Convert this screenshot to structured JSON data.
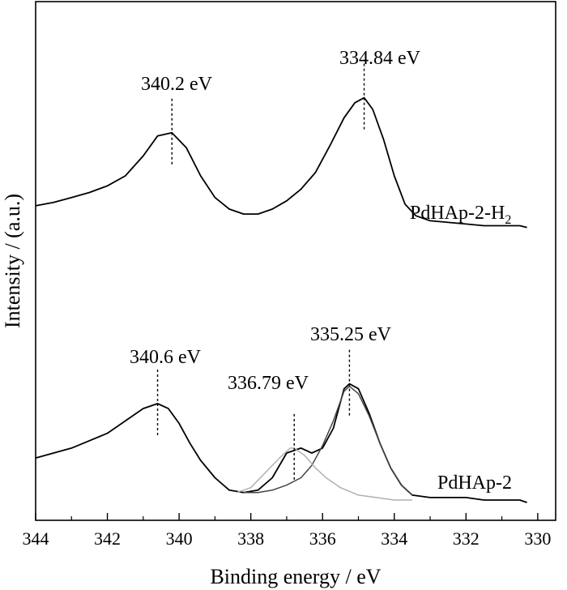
{
  "chart_data": {
    "type": "line",
    "title": "",
    "xlabel": "Binding energy / eV",
    "ylabel": "Intensity / (a.u.)",
    "xlim": [
      344,
      329.5
    ],
    "x_reversed": true,
    "xticks": [
      344,
      342,
      340,
      338,
      336,
      334,
      332,
      330
    ],
    "xtick_labels": [
      "344",
      "342",
      "340",
      "338",
      "336",
      "334",
      "332",
      "330"
    ],
    "grid": false,
    "legend": "none",
    "series": [
      {
        "name": "PdHAp-2-H₂",
        "label_main": "PdHAp-2-H",
        "label_sub": "2",
        "color": "#000000",
        "x": [
          344,
          343.5,
          343,
          342.5,
          342,
          341.5,
          341,
          340.6,
          340.2,
          339.8,
          339.4,
          339,
          338.6,
          338.2,
          337.8,
          337.4,
          337,
          336.6,
          336.2,
          335.8,
          335.4,
          335.1,
          334.84,
          334.6,
          334.3,
          334,
          333.7,
          333.4,
          333,
          332.5,
          332,
          331.5,
          331,
          330.5,
          330.3
        ],
        "y": [
          0.42,
          0.44,
          0.47,
          0.5,
          0.54,
          0.6,
          0.72,
          0.84,
          0.86,
          0.77,
          0.6,
          0.47,
          0.4,
          0.37,
          0.37,
          0.4,
          0.45,
          0.52,
          0.62,
          0.78,
          0.95,
          1.04,
          1.07,
          1.0,
          0.82,
          0.6,
          0.43,
          0.36,
          0.33,
          0.32,
          0.31,
          0.3,
          0.3,
          0.3,
          0.29
        ]
      },
      {
        "name": "PdHAp-2",
        "label_main": "PdHAp-2",
        "label_sub": "",
        "color": "#000000",
        "x": [
          344,
          343.5,
          343,
          342.5,
          342,
          341.5,
          341,
          340.6,
          340.3,
          340,
          339.7,
          339.4,
          339,
          338.6,
          338.2,
          337.8,
          337.4,
          337,
          336.6,
          336.3,
          336,
          335.7,
          335.4,
          335.25,
          335.0,
          334.7,
          334.4,
          334.1,
          333.8,
          333.5,
          333,
          332.5,
          332,
          331.5,
          331,
          330.5,
          330.3
        ],
        "y": [
          0.18,
          0.2,
          0.22,
          0.25,
          0.28,
          0.33,
          0.38,
          0.4,
          0.38,
          0.32,
          0.24,
          0.17,
          0.1,
          0.05,
          0.04,
          0.05,
          0.1,
          0.2,
          0.22,
          0.2,
          0.22,
          0.3,
          0.46,
          0.48,
          0.46,
          0.36,
          0.24,
          0.14,
          0.07,
          0.03,
          0.02,
          0.02,
          0.02,
          0.01,
          0.01,
          0.01,
          0.0
        ]
      },
      {
        "name": "Pd fit component 335.25 eV",
        "label_main": "",
        "label_sub": "",
        "color": "#444444",
        "x": [
          338.2,
          337.8,
          337.4,
          337,
          336.6,
          336.3,
          336,
          335.7,
          335.4,
          335.25,
          335.0,
          334.7,
          334.4,
          334.1,
          333.8,
          333.5
        ],
        "y": [
          0.04,
          0.04,
          0.05,
          0.07,
          0.1,
          0.15,
          0.23,
          0.33,
          0.45,
          0.47,
          0.44,
          0.35,
          0.24,
          0.14,
          0.07,
          0.03
        ]
      },
      {
        "name": "Pd fit component 336.79 eV",
        "label_main": "",
        "label_sub": "",
        "color": "#b0b0b0",
        "x": [
          338.4,
          338,
          337.6,
          337.2,
          336.9,
          336.79,
          336.5,
          336.2,
          335.9,
          335.5,
          335,
          334.5,
          334,
          333.5
        ],
        "y": [
          0.04,
          0.06,
          0.12,
          0.18,
          0.22,
          0.22,
          0.19,
          0.14,
          0.1,
          0.06,
          0.03,
          0.02,
          0.01,
          0.01
        ]
      }
    ],
    "annotations": [
      {
        "text": "340.2 eV",
        "x": 340.2,
        "series": 0
      },
      {
        "text": "334.84 eV",
        "x": 334.84,
        "series": 0
      },
      {
        "text": "340.6 eV",
        "x": 340.6,
        "series": 1
      },
      {
        "text": "336.79 eV",
        "x": 336.79,
        "series": 1
      },
      {
        "text": "335.25 eV",
        "x": 335.25,
        "series": 1
      }
    ]
  }
}
